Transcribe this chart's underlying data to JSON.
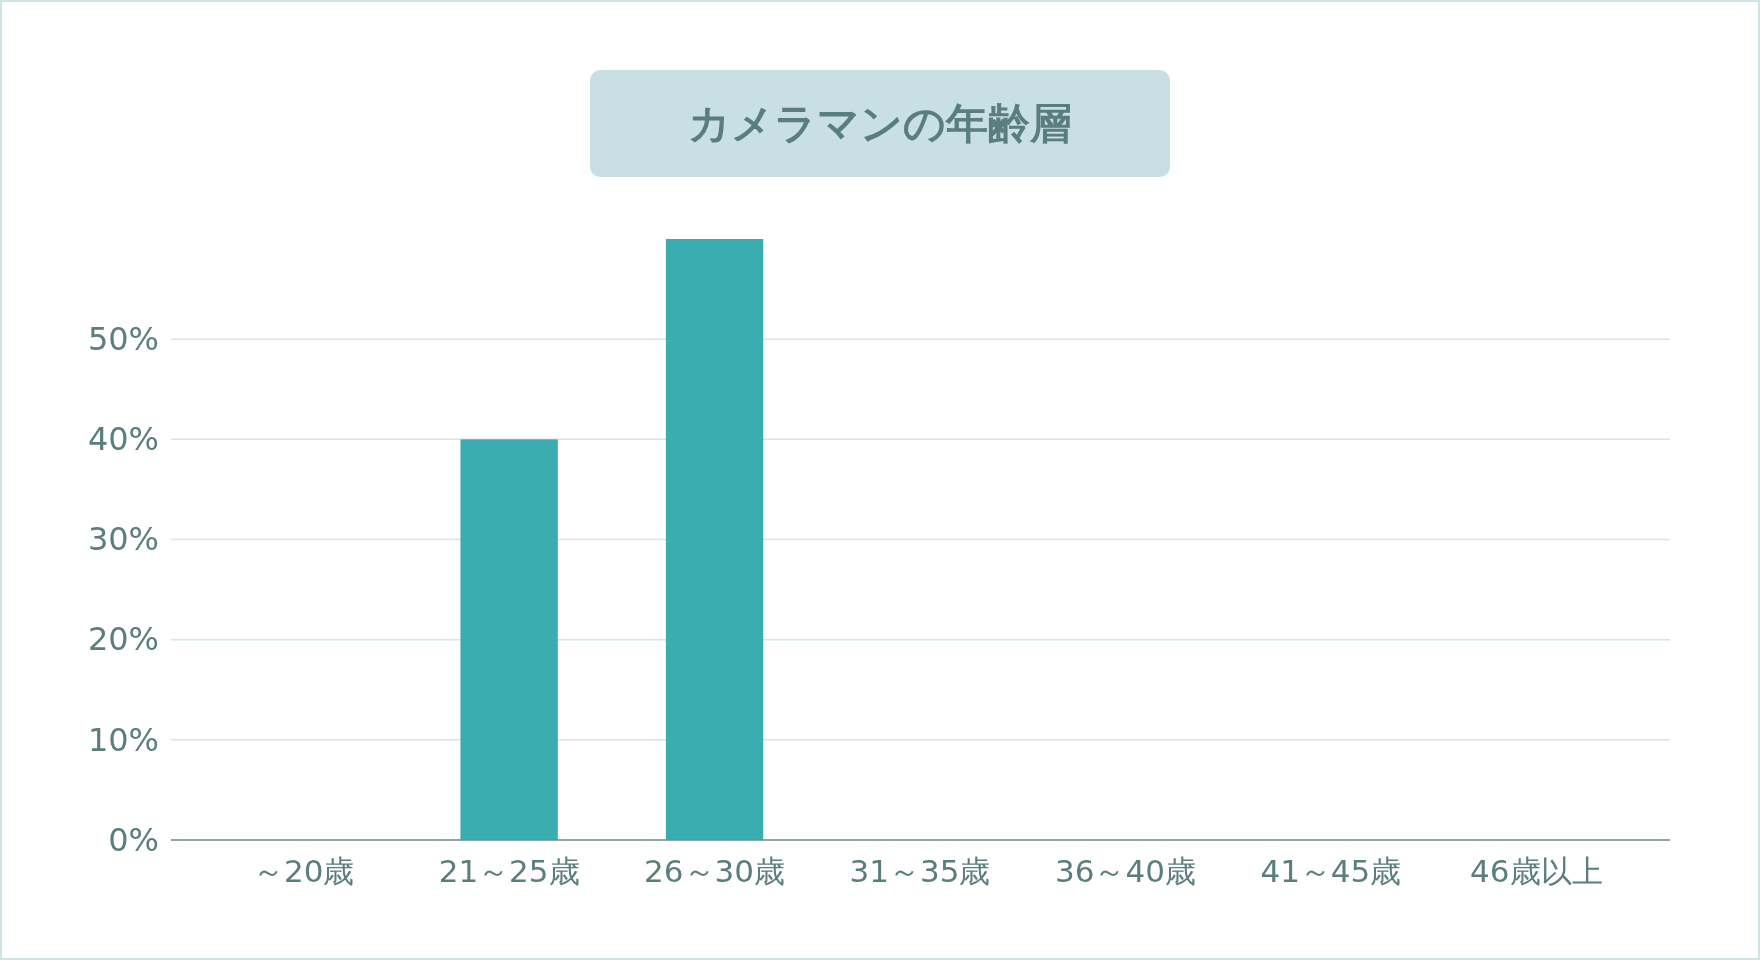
{
  "chart_data": {
    "type": "bar",
    "title": "カメラマンの年齢層",
    "categories": [
      "～20歳",
      "21～25歳",
      "26～30歳",
      "31～35歳",
      "36～40歳",
      "41～45歳",
      "46歳以上"
    ],
    "values": [
      0,
      40,
      60,
      0,
      0,
      0,
      0
    ],
    "color": "#3aadb1",
    "ylim": [
      0,
      60
    ],
    "yticks": [
      {
        "value": 0,
        "label": "0%"
      },
      {
        "value": 10,
        "label": "10%"
      },
      {
        "value": 20,
        "label": "20%"
      },
      {
        "value": 30,
        "label": "30%"
      },
      {
        "value": 40,
        "label": "40%"
      },
      {
        "value": 50,
        "label": "50%"
      }
    ],
    "grid": "y"
  }
}
